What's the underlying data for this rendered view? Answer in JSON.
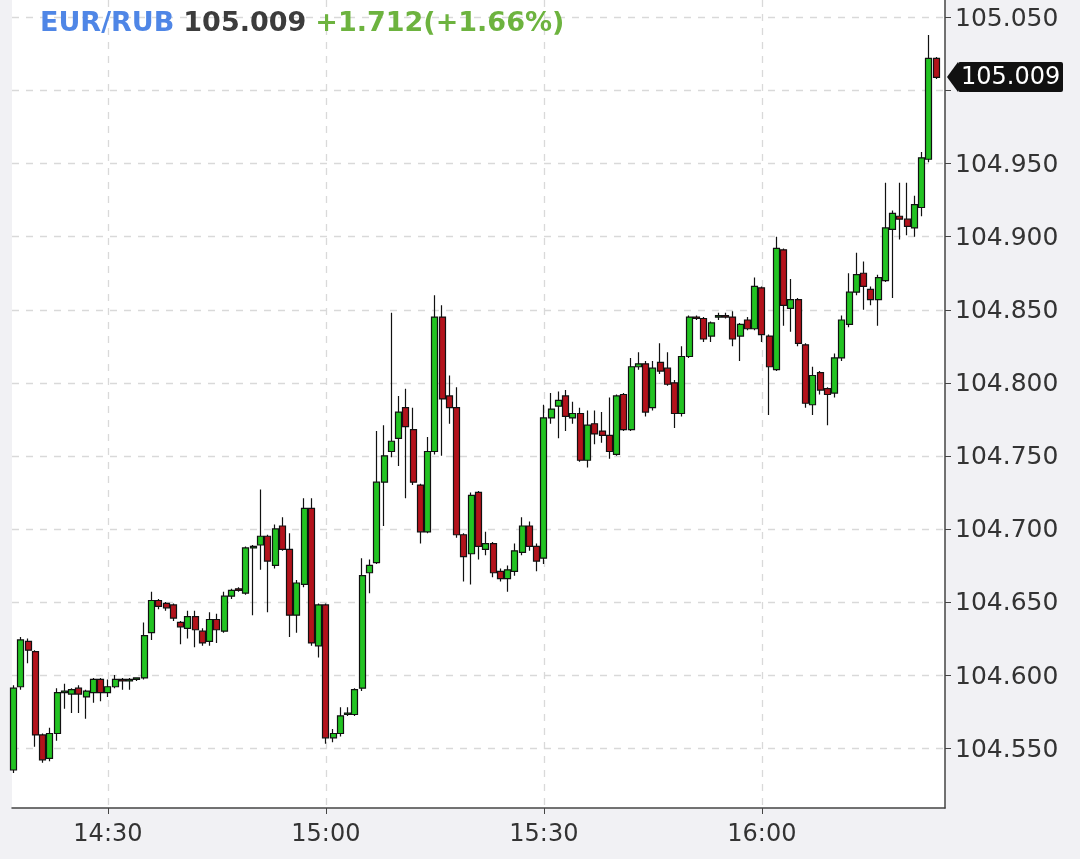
{
  "chart_data": {
    "type": "candlestick",
    "title": "EUR/RUB",
    "subtitle": "105.009",
    "annotations": [
      "+1.712(+1.66%)",
      {
        "text": "105.009",
        "x": 16.4,
        "y": 105.009
      }
    ],
    "x": [
      14.2833,
      14.3,
      14.3167,
      14.3333,
      14.35,
      14.3667,
      14.3833,
      14.4,
      14.4167,
      14.4333,
      14.45,
      14.4667,
      14.4833,
      14.5,
      14.5167,
      14.5333,
      14.55,
      14.5667,
      14.5833,
      14.6,
      14.6167,
      14.6333,
      14.65,
      14.6667,
      14.6833,
      14.7,
      14.7167,
      14.7333,
      14.75,
      14.7667,
      14.7833,
      14.8,
      14.8167,
      14.8333,
      14.85,
      14.8667,
      14.8833,
      14.9,
      14.9167,
      14.9333,
      14.95,
      14.9667,
      14.9833,
      15,
      15.0167,
      15.0333,
      15.05,
      15.0667,
      15.0833,
      15.1,
      15.1167,
      15.1333,
      15.15,
      15.1667,
      15.1833,
      15.2,
      15.2167,
      15.2333,
      15.25,
      15.2667,
      15.2833,
      15.3,
      15.3167,
      15.3333,
      15.35,
      15.3667,
      15.3833,
      15.4,
      15.4167,
      15.4333,
      15.45,
      15.4667,
      15.4833,
      15.5,
      15.5167,
      15.5333,
      15.55,
      15.5667,
      15.5833,
      15.6,
      15.6167,
      15.6333,
      15.65,
      15.6667,
      15.6833,
      15.7,
      15.7167,
      15.7333,
      15.75,
      15.7667,
      15.7833,
      15.8,
      15.8167,
      15.8333,
      15.85,
      15.8667,
      15.8833,
      15.9,
      15.9167,
      15.9333,
      15.95,
      15.9667,
      15.9833,
      16,
      16.0167,
      16.0333,
      16.05,
      16.0667,
      16.0833,
      16.1,
      16.1167,
      16.1333,
      16.15,
      16.1667,
      16.1833,
      16.2,
      16.2167,
      16.2333,
      16.25,
      16.2667,
      16.2833,
      16.3,
      16.3167,
      16.3333,
      16.35,
      16.3667,
      16.3833,
      16.4
    ],
    "ohlc": [
      [
        104.535,
        104.593,
        104.533,
        104.591
      ],
      [
        104.592,
        104.626,
        104.59,
        104.624
      ],
      [
        104.623,
        104.625,
        104.608,
        104.617
      ],
      [
        104.616,
        104.617,
        104.551,
        104.559
      ],
      [
        104.559,
        104.56,
        104.54,
        104.542
      ],
      [
        104.543,
        104.564,
        104.541,
        104.56
      ],
      [
        104.56,
        104.591,
        104.555,
        104.588
      ],
      [
        104.588,
        104.594,
        104.577,
        104.589
      ],
      [
        104.587,
        104.591,
        104.574,
        104.59
      ],
      [
        104.591,
        104.593,
        104.574,
        104.587
      ],
      [
        104.585,
        104.59,
        104.57,
        104.589
      ],
      [
        104.588,
        104.598,
        104.581,
        104.597
      ],
      [
        104.597,
        104.598,
        104.582,
        104.588
      ],
      [
        104.588,
        104.597,
        104.585,
        104.592
      ],
      [
        104.592,
        104.6,
        104.591,
        104.597
      ],
      [
        104.597,
        104.598,
        104.59,
        104.596
      ],
      [
        104.596,
        104.598,
        104.59,
        104.597
      ],
      [
        104.597,
        104.598,
        104.596,
        104.598
      ],
      [
        104.598,
        104.636,
        104.597,
        104.627
      ],
      [
        104.629,
        104.657,
        104.624,
        104.651
      ],
      [
        104.651,
        104.652,
        104.645,
        104.647
      ],
      [
        104.649,
        104.65,
        104.644,
        104.646
      ],
      [
        104.648,
        104.649,
        104.637,
        104.639
      ],
      [
        104.636,
        104.637,
        104.621,
        104.633
      ],
      [
        104.632,
        104.644,
        104.625,
        104.64
      ],
      [
        104.64,
        104.644,
        104.619,
        104.631
      ],
      [
        104.63,
        104.632,
        104.62,
        104.622
      ],
      [
        104.623,
        104.643,
        104.62,
        104.638
      ],
      [
        104.638,
        104.642,
        104.622,
        104.631
      ],
      [
        104.63,
        104.657,
        104.629,
        104.654
      ],
      [
        104.654,
        104.659,
        104.652,
        104.658
      ],
      [
        104.659,
        104.66,
        104.657,
        104.658
      ],
      [
        104.656,
        104.688,
        104.655,
        104.687
      ],
      [
        104.687,
        104.689,
        104.641,
        104.688
      ],
      [
        104.689,
        104.727,
        104.672,
        104.695
      ],
      [
        104.695,
        104.696,
        104.643,
        104.678
      ],
      [
        104.675,
        104.703,
        104.673,
        104.7
      ],
      [
        104.702,
        104.708,
        104.685,
        104.686
      ],
      [
        104.686,
        104.697,
        104.626,
        104.641
      ],
      [
        104.641,
        104.665,
        104.629,
        104.663
      ],
      [
        104.662,
        104.721,
        104.66,
        104.714
      ],
      [
        104.714,
        104.721,
        104.62,
        104.622
      ],
      [
        104.62,
        104.649,
        104.612,
        104.648
      ],
      [
        104.648,
        104.649,
        104.553,
        104.557
      ],
      [
        104.557,
        104.563,
        104.554,
        104.56
      ],
      [
        104.56,
        104.578,
        104.558,
        104.572
      ],
      [
        104.573,
        104.578,
        104.572,
        104.574
      ],
      [
        104.573,
        104.591,
        104.572,
        104.59
      ],
      [
        104.591,
        104.68,
        104.589,
        104.668
      ],
      [
        104.67,
        104.679,
        104.656,
        104.675
      ],
      [
        104.677,
        104.767,
        104.676,
        104.732
      ],
      [
        104.732,
        104.771,
        104.702,
        104.75
      ],
      [
        104.753,
        104.848,
        104.749,
        104.76
      ],
      [
        104.762,
        104.791,
        104.743,
        104.78
      ],
      [
        104.783,
        104.796,
        104.721,
        104.77
      ],
      [
        104.768,
        104.783,
        104.73,
        104.732
      ],
      [
        104.73,
        104.731,
        104.69,
        104.698
      ],
      [
        104.698,
        104.763,
        104.697,
        104.753
      ],
      [
        104.753,
        104.86,
        104.751,
        104.845
      ],
      [
        104.845,
        104.853,
        104.75,
        104.789
      ],
      [
        104.791,
        104.805,
        104.772,
        104.783
      ],
      [
        104.783,
        104.797,
        104.694,
        104.696
      ],
      [
        104.696,
        104.697,
        104.664,
        104.681
      ],
      [
        104.683,
        104.725,
        104.662,
        104.723
      ],
      [
        104.725,
        104.726,
        104.679,
        104.688
      ],
      [
        104.686,
        104.698,
        104.682,
        104.69
      ],
      [
        104.69,
        104.691,
        104.667,
        104.67
      ],
      [
        104.671,
        104.673,
        104.664,
        104.666
      ],
      [
        104.666,
        104.675,
        104.657,
        104.672
      ],
      [
        104.671,
        104.69,
        104.668,
        104.685
      ],
      [
        104.684,
        104.708,
        104.682,
        104.702
      ],
      [
        104.702,
        104.705,
        104.685,
        104.688
      ],
      [
        104.688,
        104.69,
        104.671,
        104.678
      ],
      [
        104.68,
        104.785,
        104.676,
        104.776
      ],
      [
        104.776,
        104.793,
        104.772,
        104.782
      ],
      [
        104.784,
        104.794,
        104.762,
        104.788
      ],
      [
        104.791,
        104.795,
        104.767,
        104.777
      ],
      [
        104.776,
        104.787,
        104.772,
        104.779
      ],
      [
        104.779,
        104.783,
        104.746,
        104.747
      ],
      [
        104.747,
        104.781,
        104.742,
        104.771
      ],
      [
        104.772,
        104.781,
        104.758,
        104.765
      ],
      [
        104.767,
        104.78,
        104.759,
        104.764
      ],
      [
        104.764,
        104.79,
        104.748,
        104.753
      ],
      [
        104.751,
        104.792,
        104.75,
        104.791
      ],
      [
        104.792,
        104.793,
        104.767,
        104.768
      ],
      [
        104.768,
        104.817,
        104.767,
        104.811
      ],
      [
        104.811,
        104.821,
        104.809,
        104.813
      ],
      [
        104.813,
        104.815,
        104.777,
        104.78
      ],
      [
        104.783,
        104.815,
        104.781,
        104.81
      ],
      [
        104.814,
        104.827,
        104.806,
        104.808
      ],
      [
        104.81,
        104.821,
        104.798,
        104.799
      ],
      [
        104.8,
        104.802,
        104.769,
        104.779
      ],
      [
        104.779,
        104.825,
        104.777,
        104.818
      ],
      [
        104.818,
        104.846,
        104.817,
        104.845
      ],
      [
        104.845,
        104.846,
        104.843,
        104.844
      ],
      [
        104.844,
        104.845,
        104.828,
        104.83
      ],
      [
        104.832,
        104.842,
        104.828,
        104.841
      ],
      [
        104.845,
        104.848,
        104.843,
        104.846
      ],
      [
        104.846,
        104.848,
        104.844,
        104.845
      ],
      [
        104.845,
        104.849,
        104.825,
        104.83
      ],
      [
        104.832,
        104.841,
        104.815,
        104.84
      ],
      [
        104.843,
        104.845,
        104.836,
        104.837
      ],
      [
        104.837,
        104.872,
        104.836,
        104.866
      ],
      [
        104.865,
        104.866,
        104.828,
        104.833
      ],
      [
        104.832,
        104.833,
        104.778,
        104.811
      ],
      [
        104.809,
        104.9,
        104.808,
        104.892
      ],
      [
        104.891,
        104.892,
        104.839,
        104.853
      ],
      [
        104.851,
        104.871,
        104.835,
        104.857
      ],
      [
        104.857,
        104.858,
        104.825,
        104.827
      ],
      [
        104.826,
        104.827,
        104.783,
        104.786
      ],
      [
        104.785,
        104.811,
        104.778,
        104.805
      ],
      [
        104.807,
        104.808,
        104.792,
        104.795
      ],
      [
        104.796,
        104.797,
        104.771,
        104.792
      ],
      [
        104.793,
        104.82,
        104.79,
        104.817
      ],
      [
        104.817,
        104.846,
        104.815,
        104.843
      ],
      [
        104.84,
        104.875,
        104.838,
        104.862
      ],
      [
        104.862,
        104.889,
        104.86,
        104.874
      ],
      [
        104.875,
        104.883,
        104.85,
        104.866
      ],
      [
        104.864,
        104.866,
        104.853,
        104.857
      ],
      [
        104.857,
        104.874,
        104.839,
        104.872
      ],
      [
        104.87,
        104.937,
        104.869,
        104.906
      ],
      [
        104.905,
        104.918,
        104.858,
        104.916
      ],
      [
        104.914,
        104.937,
        104.898,
        104.912
      ],
      [
        104.912,
        104.937,
        104.901,
        104.907
      ],
      [
        104.906,
        104.928,
        104.9,
        104.922
      ],
      [
        104.92,
        104.958,
        104.914,
        104.954
      ],
      [
        104.953,
        105.038,
        104.951,
        105.022
      ],
      [
        105.022,
        105.023,
        105.008,
        105.009
      ]
    ],
    "xlim": [
      14.28,
      16.42
    ],
    "xticks": [
      {
        "value": 14.5,
        "label": "14:30"
      },
      {
        "value": 15,
        "label": "15:00"
      },
      {
        "value": 15.5,
        "label": "15:30"
      },
      {
        "value": 16,
        "label": "16:00"
      }
    ],
    "ylim": [
      104.509,
      105.062
    ],
    "yticks": [
      {
        "value": 104.55,
        "label": "104.550"
      },
      {
        "value": 104.6,
        "label": "104.600"
      },
      {
        "value": 104.65,
        "label": "104.650"
      },
      {
        "value": 104.7,
        "label": "104.700"
      },
      {
        "value": 104.75,
        "label": "104.750"
      },
      {
        "value": 104.8,
        "label": "104.800"
      },
      {
        "value": 104.85,
        "label": "104.850"
      },
      {
        "value": 104.9,
        "label": "104.900"
      },
      {
        "value": 104.95,
        "label": "104.950"
      },
      {
        "value": 105,
        "label": null
      },
      {
        "value": 105.05,
        "label": "105.050"
      }
    ],
    "grid": true
  }
}
